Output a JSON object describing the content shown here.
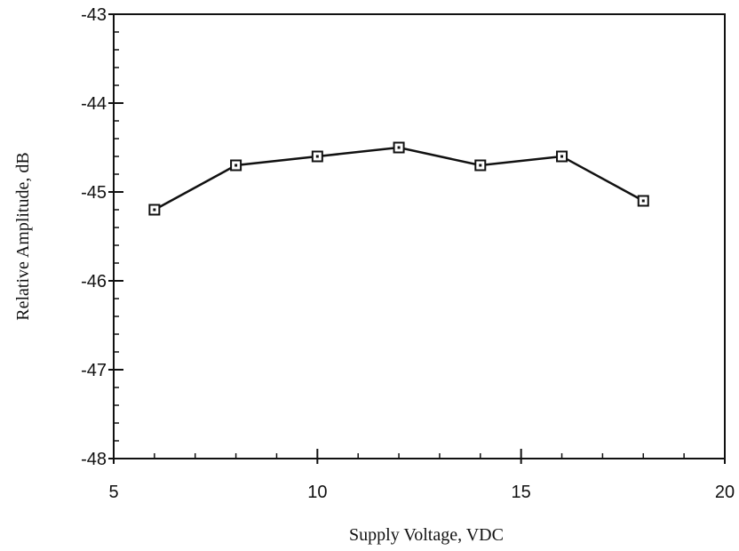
{
  "chart_data": {
    "type": "line",
    "title": "",
    "xlabel": "Supply Voltage, VDC",
    "ylabel": "Relative Amplitude, dB",
    "xlim": [
      5,
      20
    ],
    "ylim": [
      -48,
      -43
    ],
    "xticks": [
      5,
      10,
      15,
      20
    ],
    "yticks": [
      -48,
      -47,
      -46,
      -45,
      -44,
      -43
    ],
    "x_tick_labels": [
      "5",
      "10",
      "15",
      "20"
    ],
    "y_tick_labels": [
      "-48",
      "-47",
      "-46",
      "-45",
      "-44",
      "-43"
    ],
    "grid": false,
    "marker": "square",
    "series": [
      {
        "x": [
          6,
          8,
          10,
          12,
          14,
          16,
          18
        ],
        "y": [
          -45.2,
          -44.7,
          -44.6,
          -44.5,
          -44.7,
          -44.6,
          -45.1
        ]
      }
    ]
  }
}
